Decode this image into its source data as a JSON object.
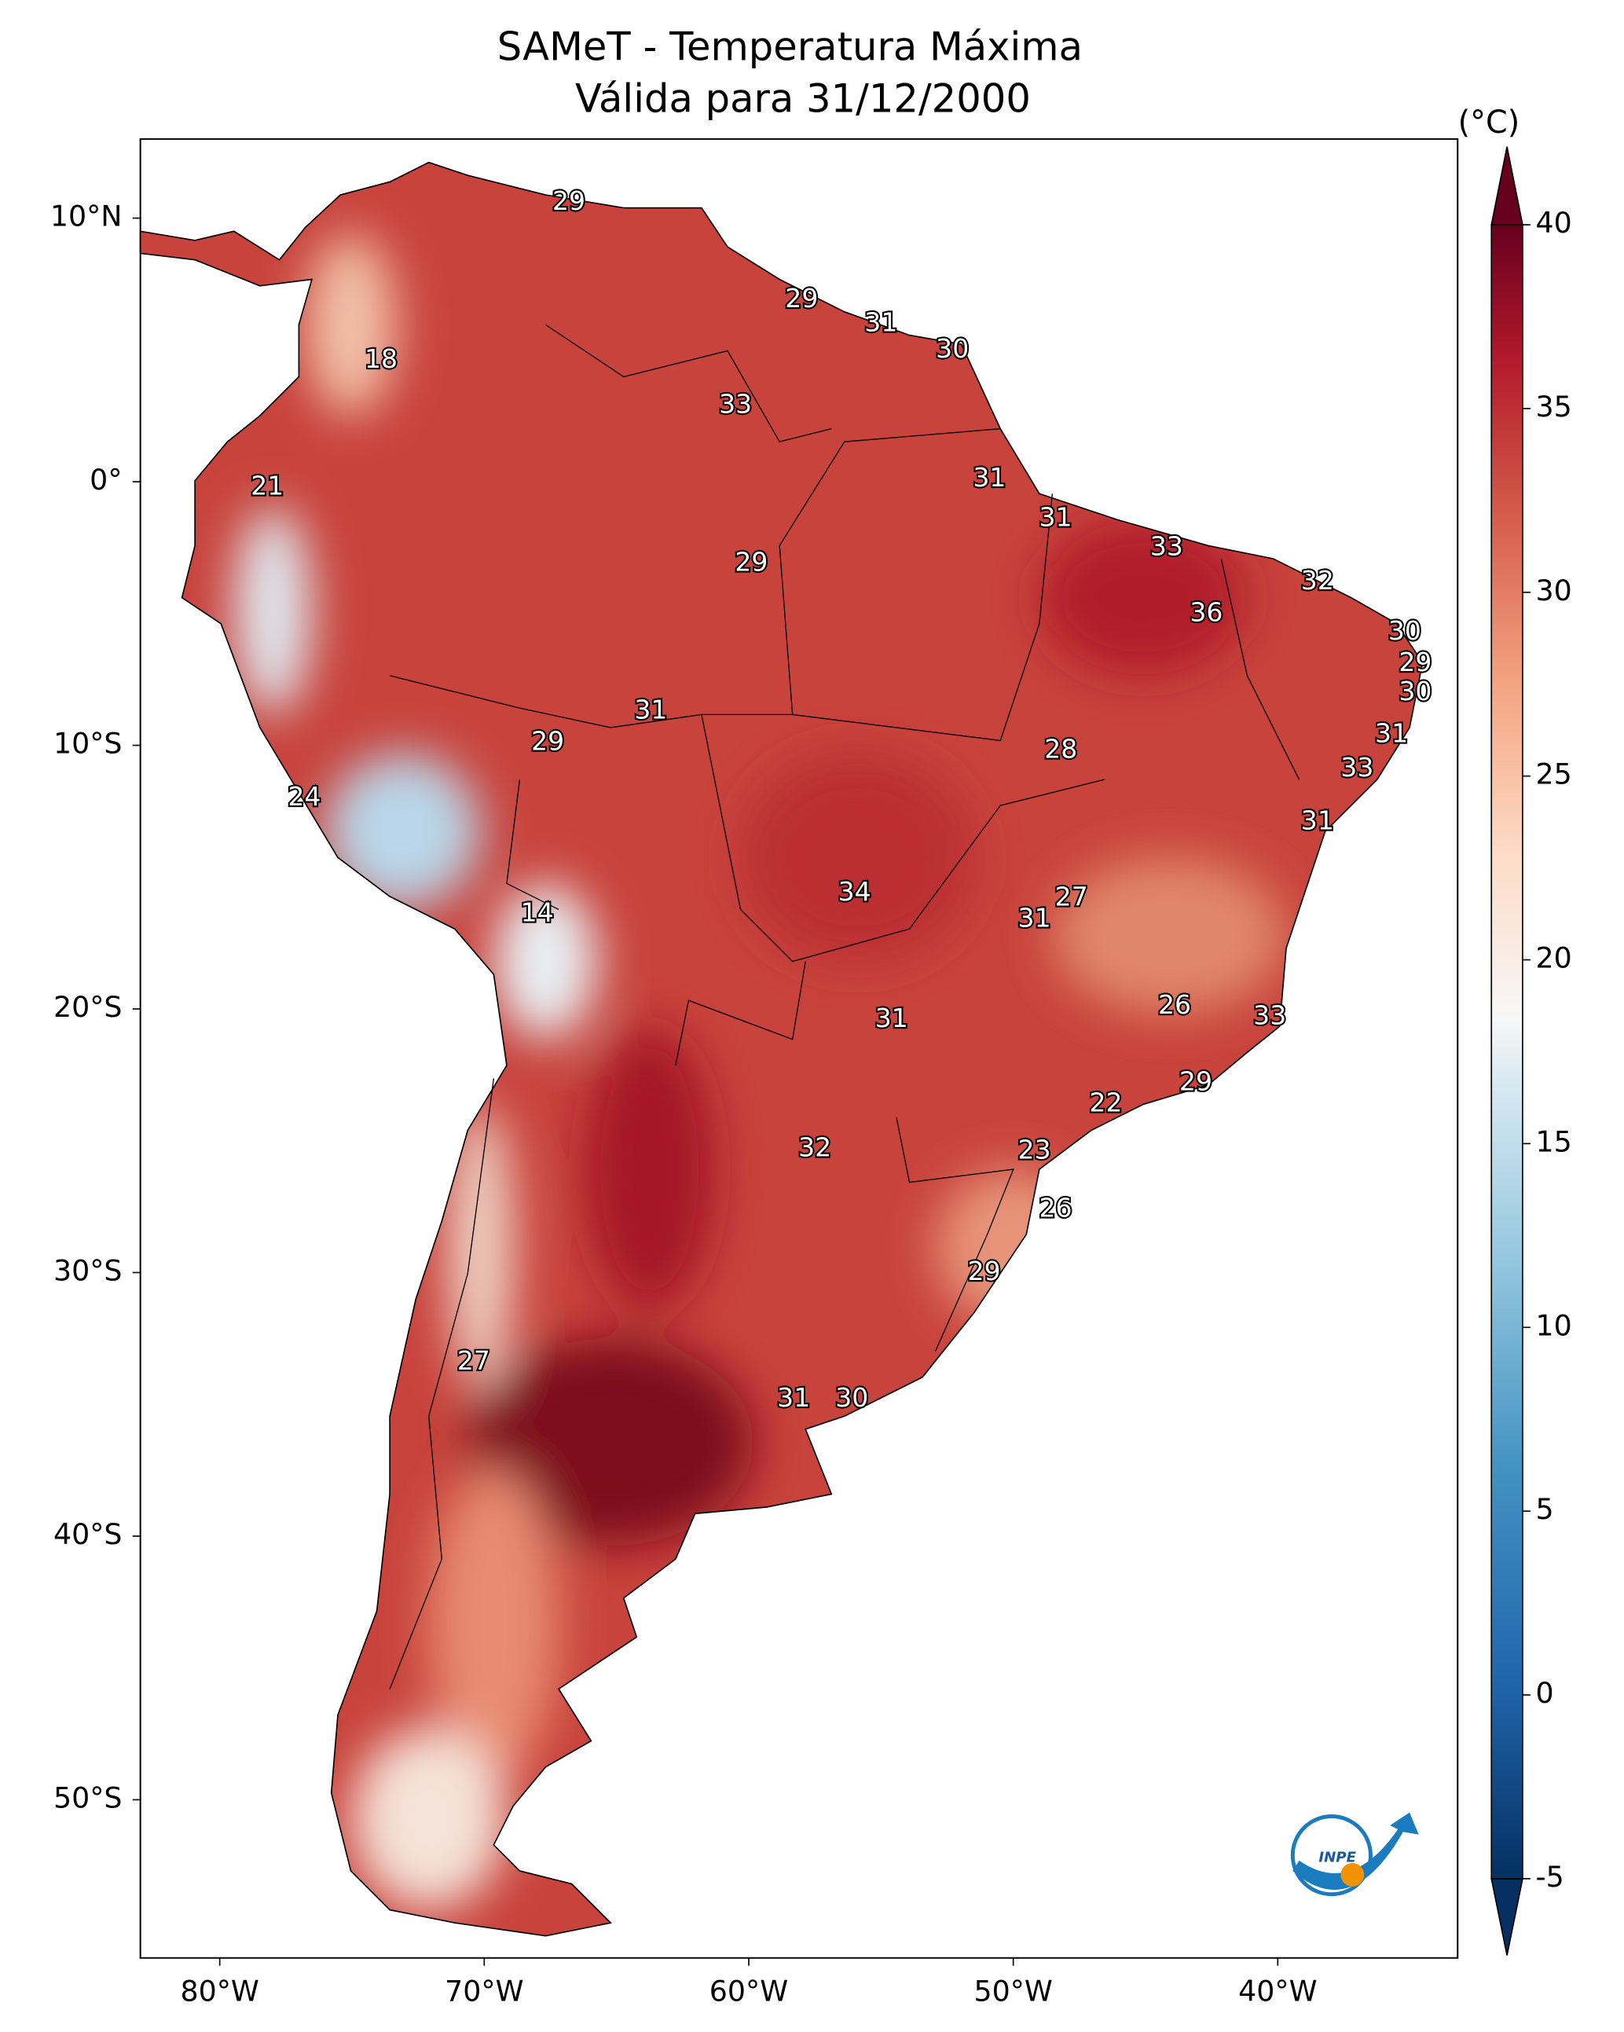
{
  "chart_data": {
    "type": "map",
    "title": [
      "SAMeT - Temperatura Máxima",
      "Válida para 31/12/2000"
    ],
    "xlim": [
      -83,
      -33.2
    ],
    "ylim": [
      -56,
      13
    ],
    "xticks": [
      {
        "value": -80,
        "label": "80°W"
      },
      {
        "value": -70,
        "label": "70°W"
      },
      {
        "value": -60,
        "label": "60°W"
      },
      {
        "value": -50,
        "label": "50°W"
      },
      {
        "value": -40,
        "label": "40°W"
      }
    ],
    "yticks": [
      {
        "value": 10,
        "label": "10°N"
      },
      {
        "value": 0,
        "label": "0°"
      },
      {
        "value": -10,
        "label": "10°S"
      },
      {
        "value": -20,
        "label": "20°S"
      },
      {
        "value": -30,
        "label": "30°S"
      },
      {
        "value": -40,
        "label": "40°S"
      },
      {
        "value": -50,
        "label": "50°S"
      }
    ],
    "colorbar": {
      "label": "(°C)",
      "lim": [
        -5,
        40
      ],
      "ticks": [
        -5,
        0,
        5,
        10,
        15,
        20,
        25,
        30,
        35,
        40
      ]
    },
    "labels": {
      "values": [
        29,
        18,
        29,
        31,
        30,
        33,
        21,
        31,
        31,
        33,
        29,
        32,
        36,
        30,
        29,
        30,
        31,
        31,
        29,
        28,
        33,
        24,
        31,
        34,
        27,
        14,
        31,
        26,
        33,
        31,
        29,
        22,
        32,
        23,
        26,
        29,
        27,
        31,
        30
      ],
      "lon": [
        -66.8,
        -73.9,
        -58.0,
        -55.0,
        -52.3,
        -60.5,
        -78.2,
        -50.9,
        -48.4,
        -44.2,
        -59.9,
        -38.5,
        -42.7,
        -35.2,
        -34.8,
        -34.8,
        -63.7,
        -35.7,
        -67.6,
        -48.2,
        -37.0,
        -76.8,
        -38.5,
        -56.0,
        -47.8,
        -68.0,
        -49.2,
        -43.9,
        -40.3,
        -54.6,
        -43.1,
        -46.5,
        -57.5,
        -49.2,
        -48.4,
        -51.1,
        -70.4,
        -58.3,
        -56.1
      ],
      "lat": [
        10.6,
        4.6,
        6.9,
        6.0,
        5.0,
        2.9,
        -0.2,
        0.1,
        -1.4,
        -2.5,
        -3.1,
        -3.8,
        -5.0,
        -5.7,
        -6.9,
        -8.0,
        -8.7,
        -9.6,
        -9.9,
        -10.2,
        -10.9,
        -12.0,
        -12.9,
        -15.6,
        -15.8,
        -16.4,
        -16.6,
        -19.9,
        -20.3,
        -20.4,
        -22.8,
        -23.6,
        -25.3,
        -25.4,
        -27.6,
        -30.0,
        -33.4,
        -34.8,
        -34.8
      ]
    },
    "logo": "INPE"
  }
}
